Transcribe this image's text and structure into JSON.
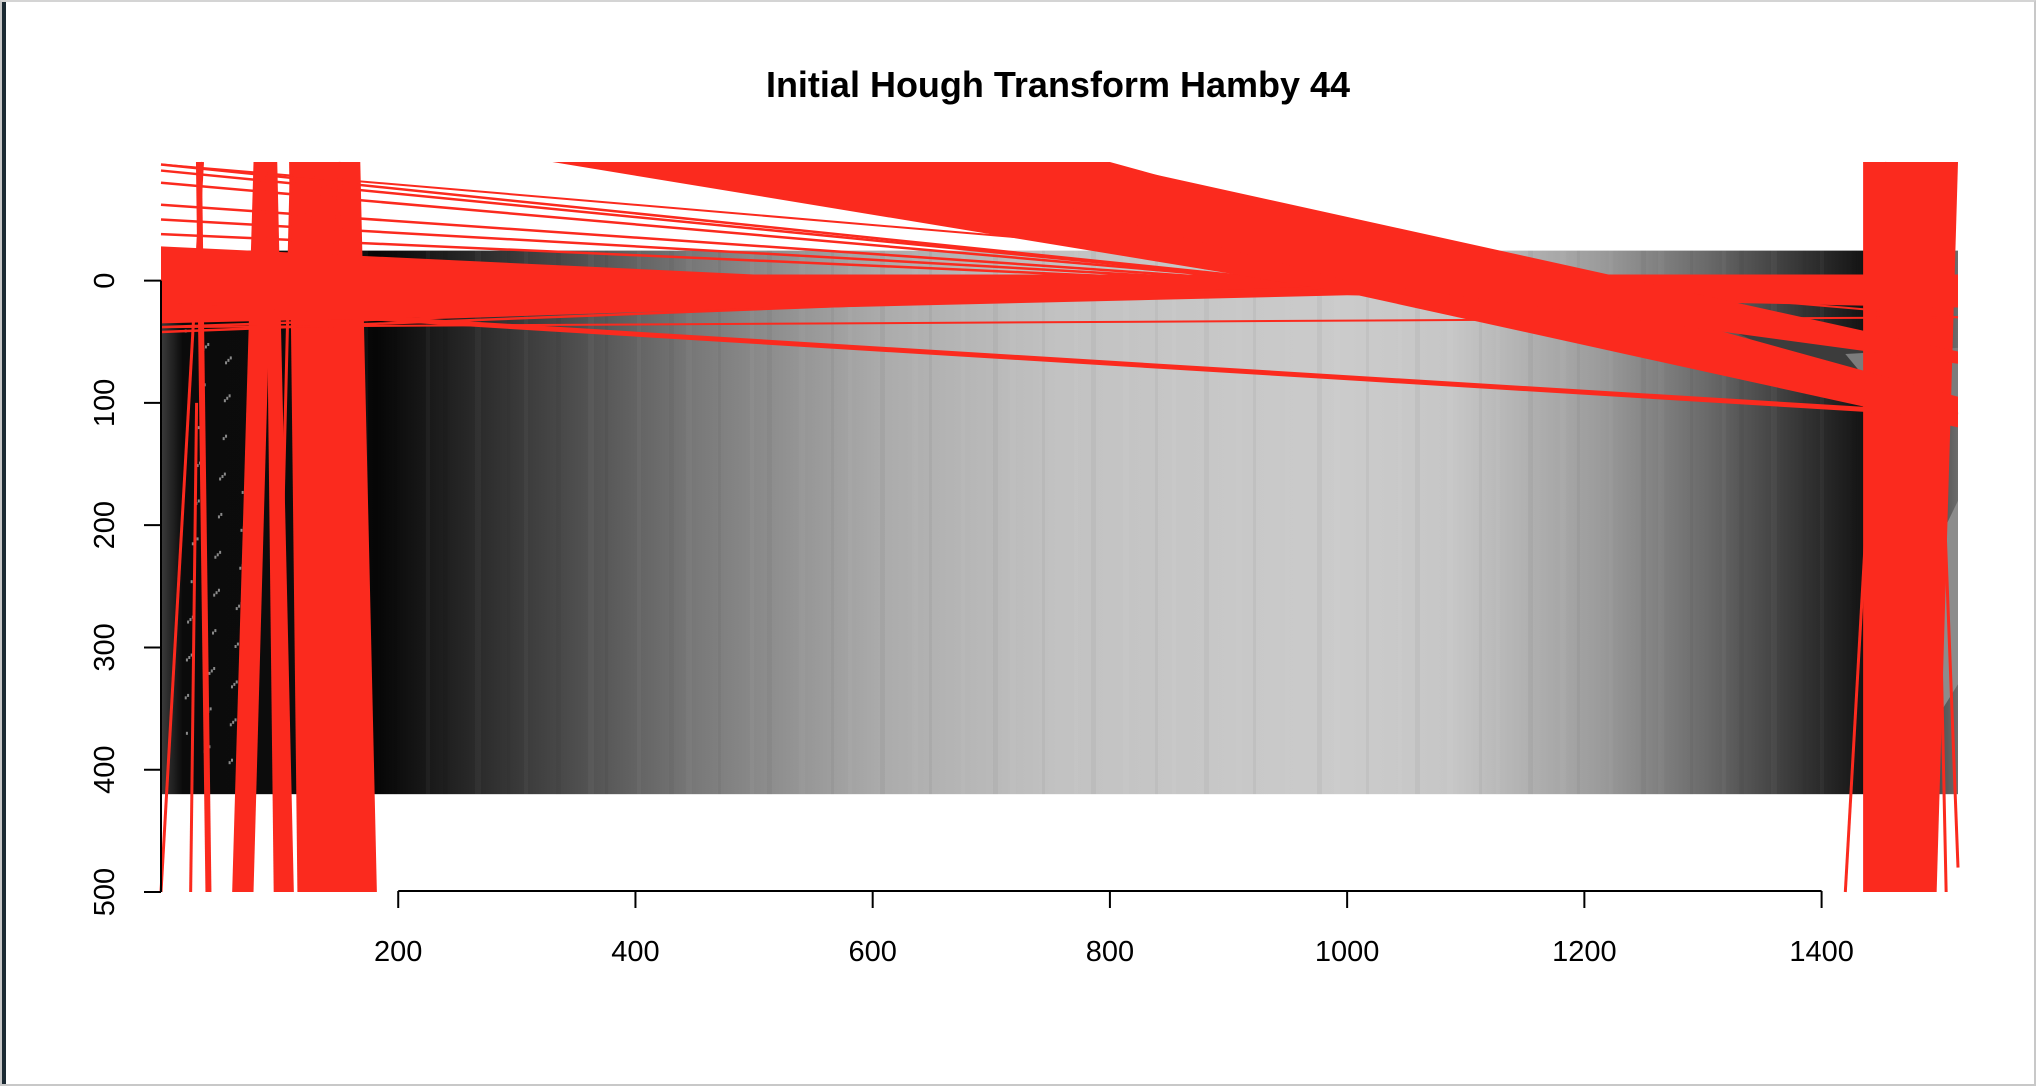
{
  "chart_data": {
    "type": "image-overlay",
    "title": "Initial Hough Transform Hamby 44",
    "xlabel": "",
    "ylabel": "",
    "xlim": [
      0,
      1515
    ],
    "ylim": [
      500,
      -97
    ],
    "x_ticks": [
      200,
      400,
      600,
      800,
      1000,
      1200,
      1400
    ],
    "y_ticks": [
      0,
      100,
      200,
      300,
      400,
      500
    ],
    "image": {
      "description": "grayscale bullet land surface heatmap",
      "x_range": [
        0,
        1515
      ],
      "y_range": [
        0,
        420
      ],
      "colormap": "gray"
    },
    "line_color": "#fb2a1e",
    "grid": false,
    "legend": "none"
  }
}
